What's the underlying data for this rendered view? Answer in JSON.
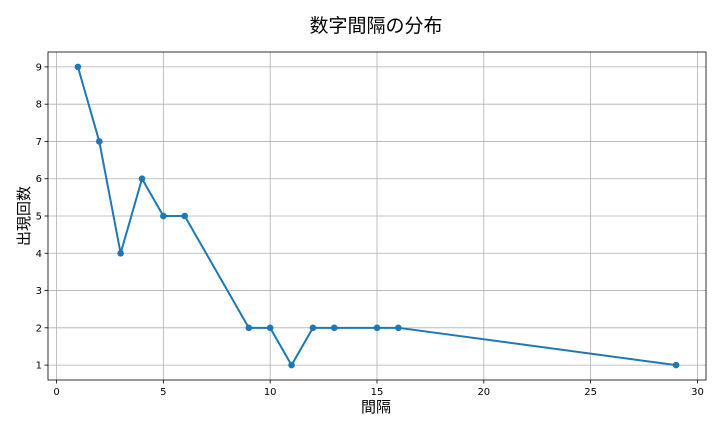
{
  "chart_data": {
    "type": "line",
    "title": "数字間隔の分布",
    "xlabel": "間隔",
    "ylabel": "出現回数",
    "xlim": [
      -0.4,
      30.4
    ],
    "ylim": [
      0.6,
      9.4
    ],
    "xticks": [
      0,
      5,
      10,
      15,
      20,
      25,
      30
    ],
    "yticks": [
      1,
      2,
      3,
      4,
      5,
      6,
      7,
      8,
      9
    ],
    "grid": true,
    "series": [
      {
        "color": "#1f77b4",
        "marker": "circle",
        "x": [
          1,
          2,
          3,
          4,
          5,
          6,
          9,
          10,
          11,
          12,
          13,
          15,
          16,
          29
        ],
        "y": [
          9,
          7,
          4,
          6,
          5,
          5,
          2,
          2,
          1,
          2,
          2,
          2,
          2,
          1
        ]
      }
    ]
  }
}
